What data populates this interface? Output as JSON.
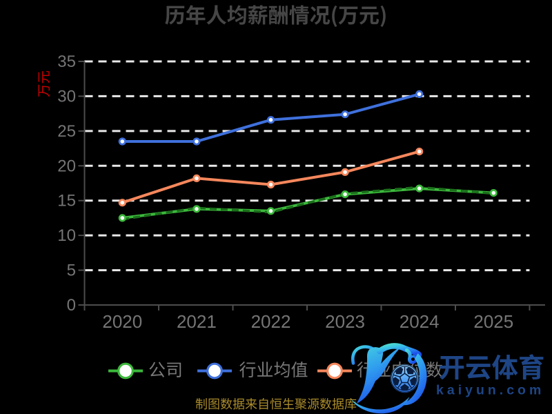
{
  "title": "历年人均薪酬情况(万元)",
  "y_axis_name": "万元",
  "caption": "制图数据来自恒生聚源数据库",
  "watermark": {
    "brand": "开云体育",
    "domain": "kaiyun.com",
    "logo": "kaiyun-k-football-logo"
  },
  "colors": {
    "background": "#000000",
    "title": "#464646",
    "axis_line": "#4d4d4d",
    "tick_label": "#757575",
    "legend_label": "#787878",
    "grid_line": "#e9e9e9",
    "y_axis_name": "#c80000",
    "caption": "#aa8b2c",
    "watermark_text": "#1e4585",
    "company": "#3cb83c",
    "company_dashed_overlay": "#1b6e1b",
    "industry_mean": "#3f70dc",
    "industry_median": "#f5875c"
  },
  "legend": {
    "items": [
      {
        "label": "公司",
        "color": "#3cb83c"
      },
      {
        "label": "行业均值",
        "color": "#3f70dc"
      },
      {
        "label": "行业中位数",
        "color": "#f5875c"
      }
    ]
  },
  "chart_data": {
    "type": "line",
    "title": "历年人均薪酬情况(万元)",
    "ylabel": "万元",
    "xlabel": "",
    "categories": [
      "2020",
      "2021",
      "2022",
      "2023",
      "2024",
      "2025"
    ],
    "series": [
      {
        "name": "公司",
        "color": "#3cb83c",
        "style": "solid",
        "markers": true,
        "values": [
          12.5,
          13.8,
          13.5,
          15.9,
          16.75,
          16.1
        ]
      },
      {
        "name": "company-dashed-overlay",
        "color": "#1b6e1b",
        "style": "dashed",
        "markers": false,
        "note": "dark dashed stroke overlaid on the 公司 line",
        "values": [
          12.3,
          13.95,
          13.32,
          16.0,
          16.92,
          16.0
        ]
      },
      {
        "name": "行业均值",
        "color": "#3f70dc",
        "style": "solid",
        "markers": true,
        "values": [
          23.5,
          23.5,
          26.6,
          27.4,
          30.3
        ]
      },
      {
        "name": "行业中位数",
        "color": "#f5875c",
        "style": "solid",
        "markers": true,
        "values": [
          14.7,
          18.2,
          17.3,
          19.1,
          22.05
        ]
      }
    ],
    "ylim": [
      0,
      35
    ],
    "yticks": [
      0,
      5,
      10,
      15,
      20,
      25,
      30,
      35
    ],
    "grid": "dashed-horizontal",
    "legend_position": "bottom"
  }
}
